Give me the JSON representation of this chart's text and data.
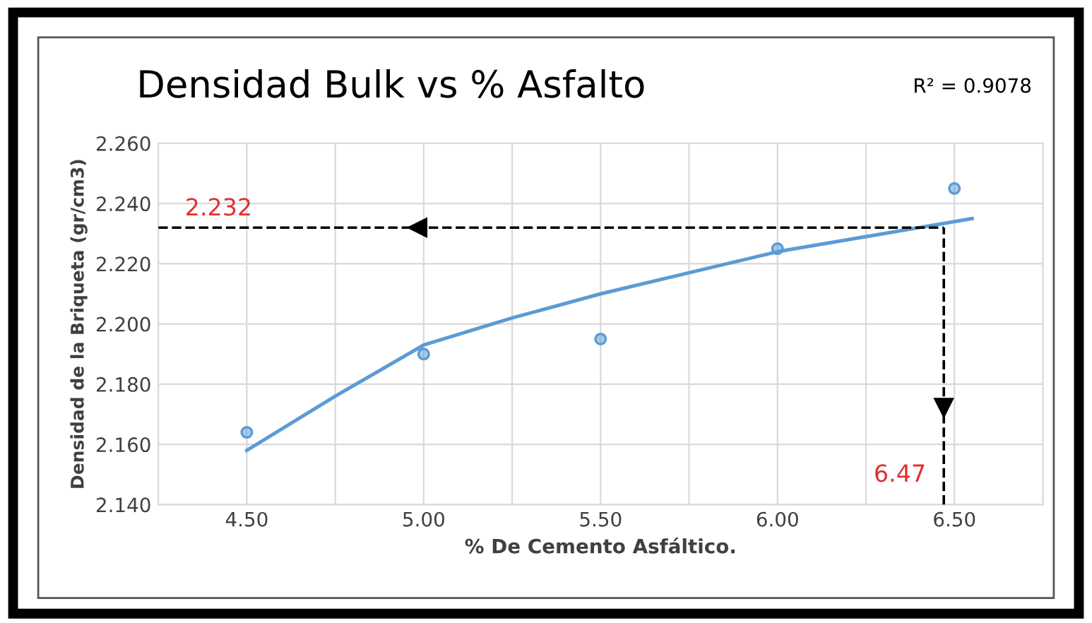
{
  "chart_data": {
    "type": "scatter",
    "title": "Densidad Bulk vs % Asfalto",
    "xlabel": "% De Cemento Asfáltico.",
    "ylabel": "Densidad de la Briqueta (gr/cm3)",
    "xlim": [
      4.25,
      6.75
    ],
    "ylim": [
      2.14,
      2.26
    ],
    "xticks": [
      {
        "value": 4.5,
        "label": "4.50"
      },
      {
        "value": 4.75,
        "label": null
      },
      {
        "value": 5.0,
        "label": "5.00"
      },
      {
        "value": 5.25,
        "label": null
      },
      {
        "value": 5.5,
        "label": "5.50"
      },
      {
        "value": 5.75,
        "label": null
      },
      {
        "value": 6.0,
        "label": "6.00"
      },
      {
        "value": 6.25,
        "label": null
      },
      {
        "value": 6.5,
        "label": "6.50"
      }
    ],
    "yticks": [
      {
        "value": 2.14,
        "label": "2.140"
      },
      {
        "value": 2.16,
        "label": "2.160"
      },
      {
        "value": 2.18,
        "label": "2.180"
      },
      {
        "value": 2.2,
        "label": "2.200"
      },
      {
        "value": 2.22,
        "label": "2.220"
      },
      {
        "value": 2.24,
        "label": "2.240"
      },
      {
        "value": 2.26,
        "label": "2.260"
      }
    ],
    "grid": true,
    "marker": "circle",
    "series": [
      {
        "color": "#5b9bd5",
        "x": [
          4.5,
          5.0,
          5.5,
          6.0,
          6.5
        ],
        "values": [
          2.164,
          2.19,
          2.195,
          2.225,
          2.245
        ]
      },
      {
        "type": "line",
        "color": "#5b9bd5",
        "marker": "none",
        "line_style": "solid",
        "x": [
          4.5,
          4.75,
          5.0,
          5.25,
          5.5,
          5.75,
          6.0,
          6.25,
          6.5,
          6.55
        ],
        "values": [
          2.158,
          2.176,
          2.193,
          2.202,
          2.21,
          2.217,
          2.224,
          2.229,
          2.234,
          2.235
        ]
      }
    ],
    "ref_lines": [
      {
        "axis": "y",
        "value": 2.232,
        "label": "2.232",
        "color": "#000000",
        "line_style": "dashed"
      },
      {
        "axis": "x",
        "value": 6.47,
        "label": "6.47",
        "color": "#000000",
        "line_style": "dashed"
      }
    ],
    "annotations": [
      "R² = 0.9078"
    ]
  }
}
